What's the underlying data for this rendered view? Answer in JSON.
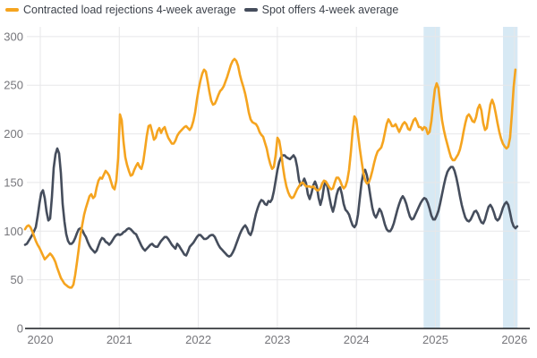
{
  "legend": {
    "series": [
      {
        "label": "Contracted load rejections 4-week average"
      },
      {
        "label": "Spot offers 4-week average"
      }
    ]
  },
  "colors": {
    "series1": "#F5A41F",
    "series2": "#454D5C",
    "band": "#BFDCEE",
    "grid": "#E7E7E9",
    "axis": "#15181D",
    "tick_text": "#76767B",
    "legend_text": "#3E434C",
    "background": "#FFFFFF"
  },
  "chart_data": {
    "type": "line",
    "title": "",
    "xlabel": "",
    "ylabel": "",
    "x_range": [
      2019.807,
      2026.195
    ],
    "y_range": [
      0,
      310
    ],
    "grid": true,
    "legend_position": "top-left",
    "x_axis": {
      "ticks": [
        2020,
        2021,
        2022,
        2023,
        2024,
        2025,
        2026
      ],
      "tick_labels": [
        "2020",
        "2021",
        "2022",
        "2023",
        "2024",
        "2025",
        "2026"
      ]
    },
    "y_axis": {
      "ticks": [
        0,
        50,
        100,
        150,
        200,
        250,
        300
      ],
      "tick_labels": [
        "0",
        "50",
        "100",
        "150",
        "200",
        "250",
        "300"
      ]
    },
    "highlight_bands": [
      {
        "from": 2024.851,
        "to": 2025.059
      },
      {
        "from": 2025.855,
        "to": 2026.04
      }
    ],
    "series": [
      {
        "name": "Contracted load rejections 4-week average",
        "color": "#F5A41F",
        "t_start": 2019.807,
        "t_step": 0.02265,
        "values": [
          102,
          105,
          106,
          104,
          100,
          95,
          90,
          86,
          83,
          79,
          75,
          71,
          73,
          75,
          77,
          75,
          72,
          68,
          62,
          57,
          52,
          49,
          46,
          44.5,
          43,
          42,
          42,
          45,
          55,
          68,
          82,
          97,
          107,
          117,
          124,
          130,
          136,
          138,
          134,
          136,
          145,
          152,
          155,
          154,
          158,
          162,
          160,
          157,
          151,
          145,
          143,
          152,
          175,
          220,
          214,
          192,
          176,
          168,
          162,
          157,
          158,
          163,
          167,
          170,
          166,
          164,
          171,
          184,
          198,
          208,
          209,
          202,
          194,
          196,
          203,
          206,
          201,
          205,
          207,
          201,
          196,
          193,
          190,
          190,
          193,
          198,
          201,
          203,
          205,
          207,
          208,
          206,
          204,
          207,
          213,
          222,
          235,
          246,
          255,
          262,
          266,
          264,
          254,
          243,
          234,
          230,
          231,
          235,
          240,
          244,
          246,
          249,
          254,
          259,
          265,
          271,
          275,
          277,
          275,
          270,
          261,
          254,
          248,
          241,
          232,
          222,
          215,
          212,
          211,
          210,
          207,
          202,
          199,
          197,
          191,
          185,
          176,
          169,
          164,
          166,
          178,
          196,
          193,
          182,
          167,
          155,
          146,
          140,
          136,
          134,
          135,
          139,
          143,
          146,
          149,
          150,
          148,
          146,
          146,
          146,
          145,
          146,
          144,
          142,
          142,
          144,
          149,
          152,
          151,
          148,
          145,
          143,
          144,
          150,
          155,
          155,
          152,
          147,
          144,
          146,
          152,
          163,
          181,
          203,
          218,
          215,
          200,
          185,
          172,
          160,
          152,
          149,
          150,
          155,
          162,
          170,
          177,
          182,
          184,
          186,
          192,
          201,
          210,
          215,
          212,
          208,
          208,
          210,
          206,
          202,
          206,
          210,
          212,
          210,
          205,
          204,
          209,
          214,
          216,
          212,
          207,
          207,
          204,
          207,
          206,
          200,
          202,
          213,
          231,
          246,
          252,
          247,
          230,
          214,
          204,
          196,
          189,
          182,
          176,
          173,
          173,
          176,
          179,
          184,
          192,
          202,
          211,
          218,
          220,
          217,
          213,
          212,
          217,
          226,
          230,
          224,
          211,
          204,
          206,
          218,
          230,
          235,
          230,
          221,
          211,
          202,
          195,
          190,
          187,
          185,
          187,
          196,
          220,
          248,
          266
        ]
      },
      {
        "name": "Spot offers 4-week average",
        "color": "#454D5C",
        "t_start": 2019.807,
        "t_step": 0.02265,
        "values": [
          86,
          87,
          90,
          93,
          96,
          100,
          104,
          115,
          128,
          139,
          142,
          134,
          120,
          111,
          113,
          135,
          165,
          179,
          185,
          180,
          160,
          128,
          110,
          97,
          90,
          87,
          87,
          89,
          93,
          98,
          102,
          103,
          101,
          97,
          94,
          89,
          85,
          82,
          80,
          78,
          80,
          85,
          90,
          93,
          92,
          89,
          88,
          86,
          88,
          91,
          94,
          96,
          97,
          96,
          97,
          99,
          100,
          102,
          103,
          102,
          100,
          98,
          97,
          93,
          89,
          85,
          82,
          80,
          82,
          84,
          86,
          87,
          85,
          84,
          84,
          87,
          90,
          92,
          94,
          94,
          92,
          89,
          86,
          84,
          82,
          87,
          85,
          82,
          79,
          76,
          75,
          79,
          84,
          86,
          88,
          91,
          94,
          96,
          96,
          94,
          92,
          92,
          93,
          95,
          96,
          96,
          94,
          90,
          86,
          83,
          81,
          79,
          77,
          75,
          74,
          75,
          78,
          82,
          87,
          92,
          97,
          101,
          104,
          106,
          103,
          98,
          96,
          101,
          110,
          118,
          124,
          129,
          132,
          131,
          128,
          127,
          131,
          130,
          133,
          141,
          152,
          163,
          171,
          176,
          178,
          178,
          176,
          175,
          174,
          176,
          178,
          175,
          166,
          153,
          147,
          150,
          154,
          149,
          138,
          133,
          139,
          147,
          151,
          146,
          134,
          127,
          134,
          146,
          151,
          145,
          135,
          126,
          120,
          127,
          137,
          143,
          145,
          138,
          128,
          122,
          120,
          117,
          111,
          106,
          104,
          107,
          117,
          134,
          150,
          160,
          163,
          157,
          147,
          135,
          124,
          117,
          114,
          118,
          123,
          120,
          114,
          107,
          102,
          100,
          100,
          103,
          108,
          115,
          122,
          128,
          133,
          136,
          133,
          128,
          121,
          115,
          112,
          113,
          117,
          121,
          125,
          129,
          132,
          134,
          133,
          129,
          123,
          116,
          112,
          112,
          116,
          121,
          129,
          138,
          147,
          155,
          161,
          164,
          166,
          166,
          162,
          155,
          146,
          136,
          127,
          120,
          114,
          111,
          110,
          112,
          116,
          120,
          121,
          118,
          113,
          109,
          108,
          112,
          119,
          125,
          127,
          124,
          119,
          113,
          111,
          113,
          118,
          124,
          128,
          130,
          127,
          119,
          110,
          105,
          103,
          105
        ]
      }
    ]
  }
}
